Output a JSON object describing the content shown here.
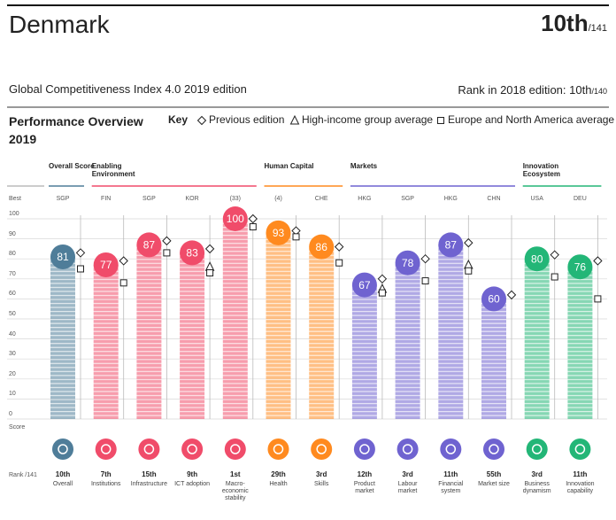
{
  "header": {
    "country": "Denmark",
    "rank": "10th",
    "rank_total": "/141",
    "edition_title": "Global Competitiveness Index 4.0 2019 edition",
    "rank_2018_label": "Rank in 2018 edition:",
    "rank_2018": "10th",
    "rank_2018_total": "/140"
  },
  "chart_data": {
    "type": "bar",
    "title": "Performance Overview 2019",
    "key_label": "Key",
    "best_label": "Best",
    "score_label": "Score",
    "rank_label": "Rank /141",
    "groups": [
      {
        "name": "Overall Score",
        "color": "#4f7d99",
        "categories": [
          "Overall"
        ],
        "best": [
          "SGP"
        ],
        "ranks": [
          "10th"
        ]
      },
      {
        "name": "Enabling Environment",
        "color": "#f04c6a",
        "categories": [
          "Institutions",
          "Infrastructure",
          "ICT adoption",
          "Macro-economic stability"
        ],
        "best": [
          "FIN",
          "SGP",
          "KOR",
          "(33)"
        ],
        "ranks": [
          "7th",
          "15th",
          "9th",
          "1st"
        ]
      },
      {
        "name": "Human Capital",
        "color": "#ff8a1f",
        "categories": [
          "Health",
          "Skills"
        ],
        "best": [
          "(4)",
          "CHE"
        ],
        "ranks": [
          "29th",
          "3rd"
        ]
      },
      {
        "name": "Markets",
        "color": "#6f63d0",
        "categories": [
          "Product market",
          "Labour market",
          "Financial system",
          "Market size"
        ],
        "best": [
          "HKG",
          "SGP",
          "HKG",
          "CHN"
        ],
        "ranks": [
          "12th",
          "3rd",
          "11th",
          "55th"
        ]
      },
      {
        "name": "Innovation Ecosystem",
        "color": "#23b677",
        "categories": [
          "Business dynamism",
          "Innovation capability"
        ],
        "best": [
          "USA",
          "DEU"
        ],
        "ranks": [
          "3rd",
          "11th"
        ]
      }
    ],
    "values": [
      81,
      77,
      87,
      83,
      100,
      93,
      86,
      67,
      78,
      87,
      60,
      80,
      76
    ],
    "series": [
      {
        "name": "Previous edition",
        "marker": "diamond",
        "values": [
          83,
          79,
          89,
          85,
          100,
          94,
          86,
          70,
          80,
          88,
          62,
          82,
          79
        ]
      },
      {
        "name": "High-income group average",
        "marker": "triangle",
        "values": [
          null,
          null,
          null,
          76,
          null,
          null,
          null,
          65,
          null,
          77,
          null,
          null,
          null
        ]
      },
      {
        "name": "Europe and North America average",
        "marker": "square",
        "values": [
          75,
          68,
          83,
          73,
          96,
          91,
          78,
          63,
          69,
          74,
          null,
          71,
          60
        ]
      }
    ],
    "ylim": [
      0,
      100
    ],
    "yticks": [
      0,
      10,
      20,
      30,
      40,
      50,
      60,
      70,
      80,
      90,
      100
    ],
    "grid": true
  }
}
